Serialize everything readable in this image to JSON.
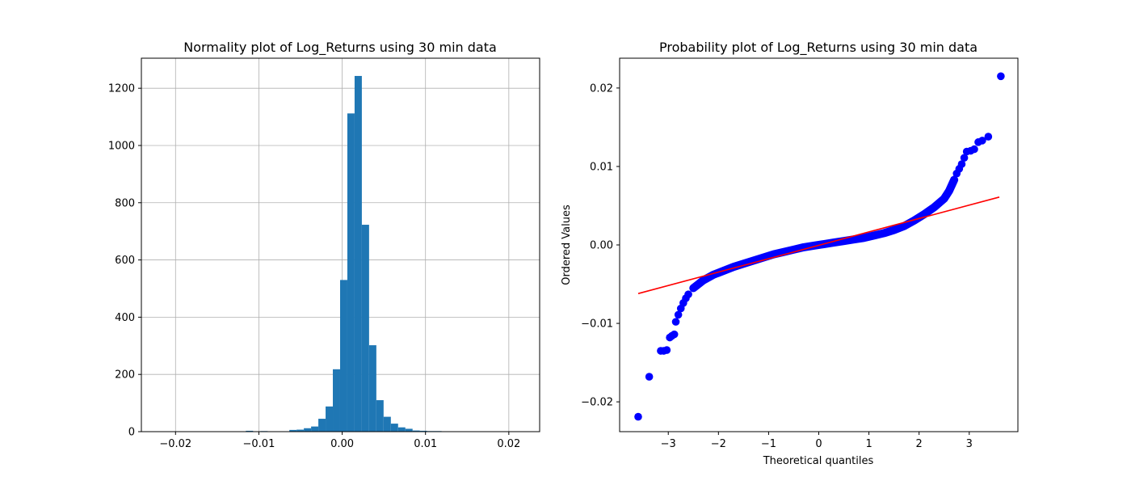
{
  "chart_data": [
    {
      "type": "bar",
      "subtype": "histogram",
      "title": "Normality plot of Log_Returns using 30 min data",
      "xlabel": "",
      "ylabel": "",
      "xlim": [
        -0.0241,
        0.0237
      ],
      "ylim": [
        0,
        1305
      ],
      "grid": true,
      "bar_color": "#1f77b4",
      "x_ticks": [
        -0.02,
        -0.01,
        0.0,
        0.01,
        0.02
      ],
      "x_tick_labels": [
        "−0.02",
        "−0.01",
        "0.00",
        "0.01",
        "0.02"
      ],
      "y_ticks": [
        0,
        200,
        400,
        600,
        800,
        1000,
        1200
      ],
      "y_tick_labels": [
        "0",
        "200",
        "400",
        "600",
        "800",
        "1000",
        "1200"
      ],
      "bin_start": -0.022,
      "bin_width": 0.00087,
      "counts": [
        1,
        0,
        0,
        0,
        0,
        0,
        0,
        0,
        0,
        0,
        0,
        0,
        3,
        0,
        2,
        0,
        1,
        1,
        6,
        7,
        12,
        18,
        45,
        88,
        218,
        530,
        1112,
        1243,
        723,
        302,
        110,
        52,
        28,
        15,
        10,
        4,
        3,
        2,
        2,
        1,
        1,
        0,
        0,
        0,
        0,
        0,
        0,
        0,
        0,
        0,
        1
      ]
    },
    {
      "type": "scatter",
      "subtype": "probability-plot",
      "title": "Probability plot of Log_Returns using 30 min data",
      "xlabel": "Theoretical quantiles",
      "ylabel": "Ordered Values",
      "xlim": [
        -3.97,
        3.97
      ],
      "ylim": [
        -0.0238,
        0.0238
      ],
      "grid": false,
      "marker_color": "#0000ff",
      "line_color": "#ff0000",
      "x_ticks": [
        -3,
        -2,
        -1,
        0,
        1,
        2,
        3
      ],
      "x_tick_labels": [
        "−3",
        "−2",
        "−1",
        "0",
        "1",
        "2",
        "3"
      ],
      "y_ticks": [
        -0.02,
        -0.01,
        0.0,
        0.01,
        0.02
      ],
      "y_tick_labels": [
        "−0.02",
        "−0.01",
        "0.00",
        "0.01",
        "0.02"
      ],
      "fit_line": {
        "x": [
          -3.6,
          3.6
        ],
        "y": [
          -0.0062,
          0.0061
        ]
      },
      "quantile_curve": {
        "x": [
          -2.5,
          -2.3,
          -2.1,
          -1.9,
          -1.7,
          -1.5,
          -1.3,
          -1.1,
          -0.9,
          -0.7,
          -0.5,
          -0.3,
          -0.1,
          0.1,
          0.3,
          0.5,
          0.7,
          0.9,
          1.1,
          1.3,
          1.5,
          1.7,
          1.9,
          2.1,
          2.3,
          2.5,
          2.55,
          2.6,
          2.65,
          2.7
        ],
        "y": [
          -0.0055,
          -0.0045,
          -0.0038,
          -0.0033,
          -0.0028,
          -0.0024,
          -0.002,
          -0.0016,
          -0.0012,
          -0.0009,
          -0.0006,
          -0.0003,
          -0.0001,
          0.0001,
          0.0003,
          0.0005,
          0.0007,
          0.0009,
          0.0012,
          0.0015,
          0.0019,
          0.0024,
          0.0031,
          0.0039,
          0.0048,
          0.0059,
          0.0064,
          0.0069,
          0.0076,
          0.0083
        ]
      },
      "tail_points": {
        "x": [
          -3.6,
          -3.38,
          -3.15,
          -3.09,
          -3.03,
          -2.97,
          -2.93,
          -2.88,
          -2.85,
          -2.8,
          -2.75,
          -2.7,
          -2.65,
          -2.6,
          2.75,
          2.8,
          2.85,
          2.9,
          2.95,
          3.03,
          3.1,
          3.18,
          3.26,
          3.38,
          3.63
        ],
        "y": [
          -0.0219,
          -0.0168,
          -0.0135,
          -0.0135,
          -0.0134,
          -0.0118,
          -0.0116,
          -0.0114,
          -0.0098,
          -0.0089,
          -0.0081,
          -0.0074,
          -0.0068,
          -0.0063,
          0.0091,
          0.0097,
          0.0103,
          0.0111,
          0.0119,
          0.012,
          0.0122,
          0.0131,
          0.0133,
          0.0138,
          0.0215
        ]
      }
    }
  ]
}
